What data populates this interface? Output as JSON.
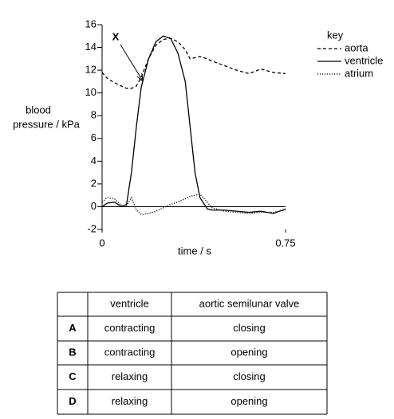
{
  "chart_data": {
    "type": "line",
    "ylabel": [
      "blood",
      "pressure / kPa"
    ],
    "xlabel": "time / s",
    "annotation": "X",
    "legend_title": "key",
    "x": [
      0,
      0.02,
      0.05,
      0.08,
      0.1,
      0.12,
      0.14,
      0.16,
      0.19,
      0.22,
      0.25,
      0.28,
      0.31,
      0.34,
      0.36,
      0.38,
      0.4,
      0.43,
      0.45,
      0.5,
      0.55,
      0.6,
      0.65,
      0.7,
      0.75
    ],
    "series": [
      {
        "name": "aorta",
        "color": "#000000",
        "style": "dashed",
        "values": [
          11.8,
          11.3,
          10.9,
          10.6,
          10.4,
          10.4,
          10.6,
          11.4,
          13.0,
          14.2,
          14.7,
          14.8,
          14.5,
          13.8,
          13.0,
          13.1,
          13.2,
          13.0,
          12.8,
          12.4,
          12.0,
          11.7,
          12.1,
          11.8,
          11.7
        ]
      },
      {
        "name": "ventricle",
        "color": "#000000",
        "style": "solid",
        "values": [
          0,
          0.3,
          0.4,
          0,
          0.2,
          3,
          7,
          10.5,
          13,
          14.5,
          15,
          14.8,
          13.5,
          11,
          7,
          3,
          0.8,
          -0.2,
          -0.3,
          -0.3,
          -0.4,
          -0.5,
          -0.4,
          -0.6,
          -0.2
        ]
      },
      {
        "name": "atrium",
        "color": "#000000",
        "style": "dotted",
        "values": [
          0.4,
          0.8,
          0.7,
          0.1,
          0.1,
          0.8,
          -0.3,
          -0.7,
          -0.6,
          -0.4,
          -0.1,
          0.2,
          0.4,
          0.7,
          0.9,
          1.0,
          1.1,
          0.4,
          -0.1,
          -0.4,
          -0.5,
          -0.6,
          -0.5,
          -0.5,
          -0.3
        ]
      }
    ],
    "xlim": [
      0,
      0.75
    ],
    "xticks": [
      0,
      0.75
    ],
    "ylim": [
      -2,
      16
    ],
    "yticks": [
      -2,
      0,
      2,
      4,
      6,
      8,
      10,
      12,
      14,
      16
    ]
  },
  "table": {
    "header": [
      "ventricle",
      "aortic semilunar valve"
    ],
    "rows": [
      [
        "A",
        "contracting",
        "closing"
      ],
      [
        "B",
        "contracting",
        "opening"
      ],
      [
        "C",
        "relaxing",
        "closing"
      ],
      [
        "D",
        "relaxing",
        "opening"
      ]
    ]
  }
}
